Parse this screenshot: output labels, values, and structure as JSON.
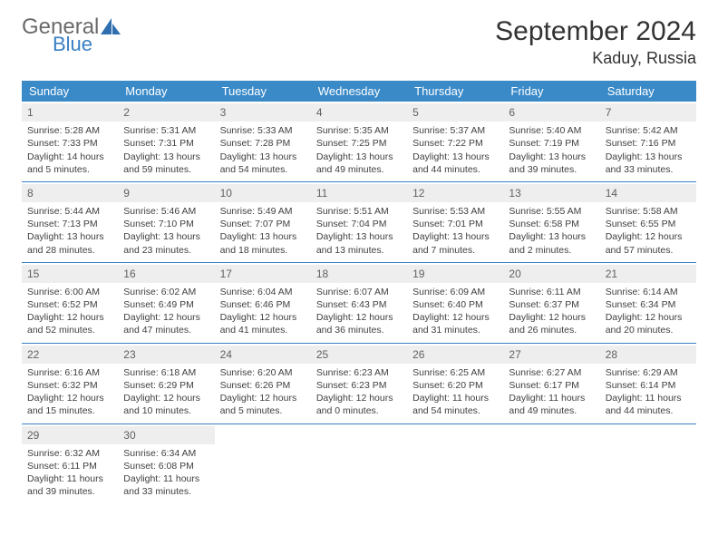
{
  "logo": {
    "line1": "General",
    "line2": "Blue"
  },
  "title": "September 2024",
  "location": "Kaduy, Russia",
  "colors": {
    "header_bg": "#3a8ac8",
    "header_text": "#ffffff",
    "daynum_bg": "#eeeeee",
    "border": "#3a7fc4",
    "text": "#404040",
    "logo_gray": "#6a6a6a",
    "logo_blue": "#3a7fc4"
  },
  "weekdays": [
    "Sunday",
    "Monday",
    "Tuesday",
    "Wednesday",
    "Thursday",
    "Friday",
    "Saturday"
  ],
  "days": [
    {
      "n": 1,
      "sr": "5:28 AM",
      "ss": "7:33 PM",
      "dl": "14 hours and 5 minutes."
    },
    {
      "n": 2,
      "sr": "5:31 AM",
      "ss": "7:31 PM",
      "dl": "13 hours and 59 minutes."
    },
    {
      "n": 3,
      "sr": "5:33 AM",
      "ss": "7:28 PM",
      "dl": "13 hours and 54 minutes."
    },
    {
      "n": 4,
      "sr": "5:35 AM",
      "ss": "7:25 PM",
      "dl": "13 hours and 49 minutes."
    },
    {
      "n": 5,
      "sr": "5:37 AM",
      "ss": "7:22 PM",
      "dl": "13 hours and 44 minutes."
    },
    {
      "n": 6,
      "sr": "5:40 AM",
      "ss": "7:19 PM",
      "dl": "13 hours and 39 minutes."
    },
    {
      "n": 7,
      "sr": "5:42 AM",
      "ss": "7:16 PM",
      "dl": "13 hours and 33 minutes."
    },
    {
      "n": 8,
      "sr": "5:44 AM",
      "ss": "7:13 PM",
      "dl": "13 hours and 28 minutes."
    },
    {
      "n": 9,
      "sr": "5:46 AM",
      "ss": "7:10 PM",
      "dl": "13 hours and 23 minutes."
    },
    {
      "n": 10,
      "sr": "5:49 AM",
      "ss": "7:07 PM",
      "dl": "13 hours and 18 minutes."
    },
    {
      "n": 11,
      "sr": "5:51 AM",
      "ss": "7:04 PM",
      "dl": "13 hours and 13 minutes."
    },
    {
      "n": 12,
      "sr": "5:53 AM",
      "ss": "7:01 PM",
      "dl": "13 hours and 7 minutes."
    },
    {
      "n": 13,
      "sr": "5:55 AM",
      "ss": "6:58 PM",
      "dl": "13 hours and 2 minutes."
    },
    {
      "n": 14,
      "sr": "5:58 AM",
      "ss": "6:55 PM",
      "dl": "12 hours and 57 minutes."
    },
    {
      "n": 15,
      "sr": "6:00 AM",
      "ss": "6:52 PM",
      "dl": "12 hours and 52 minutes."
    },
    {
      "n": 16,
      "sr": "6:02 AM",
      "ss": "6:49 PM",
      "dl": "12 hours and 47 minutes."
    },
    {
      "n": 17,
      "sr": "6:04 AM",
      "ss": "6:46 PM",
      "dl": "12 hours and 41 minutes."
    },
    {
      "n": 18,
      "sr": "6:07 AM",
      "ss": "6:43 PM",
      "dl": "12 hours and 36 minutes."
    },
    {
      "n": 19,
      "sr": "6:09 AM",
      "ss": "6:40 PM",
      "dl": "12 hours and 31 minutes."
    },
    {
      "n": 20,
      "sr": "6:11 AM",
      "ss": "6:37 PM",
      "dl": "12 hours and 26 minutes."
    },
    {
      "n": 21,
      "sr": "6:14 AM",
      "ss": "6:34 PM",
      "dl": "12 hours and 20 minutes."
    },
    {
      "n": 22,
      "sr": "6:16 AM",
      "ss": "6:32 PM",
      "dl": "12 hours and 15 minutes."
    },
    {
      "n": 23,
      "sr": "6:18 AM",
      "ss": "6:29 PM",
      "dl": "12 hours and 10 minutes."
    },
    {
      "n": 24,
      "sr": "6:20 AM",
      "ss": "6:26 PM",
      "dl": "12 hours and 5 minutes."
    },
    {
      "n": 25,
      "sr": "6:23 AM",
      "ss": "6:23 PM",
      "dl": "12 hours and 0 minutes."
    },
    {
      "n": 26,
      "sr": "6:25 AM",
      "ss": "6:20 PM",
      "dl": "11 hours and 54 minutes."
    },
    {
      "n": 27,
      "sr": "6:27 AM",
      "ss": "6:17 PM",
      "dl": "11 hours and 49 minutes."
    },
    {
      "n": 28,
      "sr": "6:29 AM",
      "ss": "6:14 PM",
      "dl": "11 hours and 44 minutes."
    },
    {
      "n": 29,
      "sr": "6:32 AM",
      "ss": "6:11 PM",
      "dl": "11 hours and 39 minutes."
    },
    {
      "n": 30,
      "sr": "6:34 AM",
      "ss": "6:08 PM",
      "dl": "11 hours and 33 minutes."
    }
  ],
  "labels": {
    "sunrise": "Sunrise:",
    "sunset": "Sunset:",
    "daylight": "Daylight:"
  }
}
